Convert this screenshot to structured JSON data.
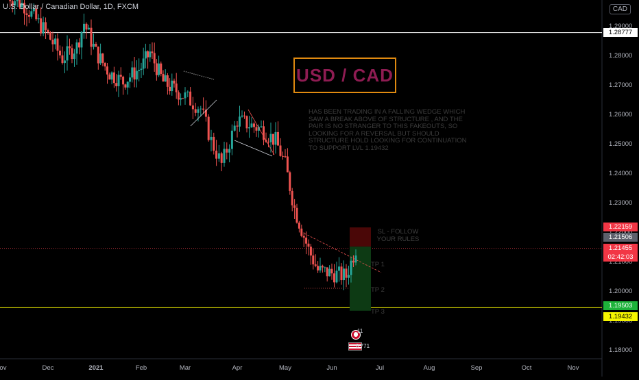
{
  "header": {
    "symbol": "U.S. Dollar / Canadian Dollar, 1D, FXCM",
    "currency_badge": "CAD"
  },
  "annotation": {
    "title": "USD / CAD",
    "note": "HAS BEEN TRADING IN A FALLING WEDGE WHICH SAW A BREAK ABOVE OF STRUCTURE , AND THE PAIR IS NO STRANGER TO THIS FAKEOUTS, SO LOOKING FOR A REVERSAL BUT SHOULD STRUCTURE HOLD LOOKING FOR CONTINUATION TO SUPPORT LVL 1.19432",
    "sl_label": "SL - FOLLOW YOUR RULES",
    "tp1": "TP 1",
    "tp2": "TP 2",
    "tp3": "TP 3"
  },
  "price_tags": {
    "resistance": "1.28777",
    "stop": "1.22159",
    "entry": "1.21506",
    "last": "1.21455",
    "countdown": "02:42:03",
    "target_green": "1.19503",
    "support": "1.19432"
  },
  "badges": {
    "ideas": "11",
    "followers": "8 771"
  },
  "colors": {
    "background": "#000000",
    "up": "#26a69a",
    "down": "#ef5350",
    "resistance_line": "#ffffff",
    "support_line": "#f5f500",
    "title_border": "#e08a10",
    "title_text": "#8e1c52",
    "stop_zone": "#4a0707",
    "target_zone": "#0d3a14"
  },
  "chart_data": {
    "type": "candlestick",
    "title": "U.S. Dollar / Canadian Dollar, 1D, FXCM",
    "x_ticks": [
      "Nov",
      "Dec",
      "2021",
      "Feb",
      "Mar",
      "Apr",
      "May",
      "Jun",
      "Jul",
      "Aug",
      "Sep",
      "Oct",
      "Nov"
    ],
    "y_ticks": [
      "1.29000",
      "1.28000",
      "1.27000",
      "1.26000",
      "1.25000",
      "1.24000",
      "1.23000",
      "1.22000",
      "1.21000",
      "1.20000",
      "1.19000",
      "1.18000"
    ],
    "ylim": [
      1.175,
      1.2985
    ],
    "close_path": [
      {
        "month": 0.0,
        "close": 1.302
      },
      {
        "month": 0.5,
        "close": 1.297
      },
      {
        "month": 1.0,
        "close": 1.287
      },
      {
        "month": 1.3,
        "close": 1.279
      },
      {
        "month": 1.6,
        "close": 1.283
      },
      {
        "month": 1.75,
        "close": 1.291
      },
      {
        "month": 2.0,
        "close": 1.281
      },
      {
        "month": 2.3,
        "close": 1.274
      },
      {
        "month": 2.6,
        "close": 1.271
      },
      {
        "month": 3.0,
        "close": 1.276
      },
      {
        "month": 3.2,
        "close": 1.281
      },
      {
        "month": 3.5,
        "close": 1.271
      },
      {
        "month": 4.0,
        "close": 1.266
      },
      {
        "month": 4.3,
        "close": 1.262
      },
      {
        "month": 4.5,
        "close": 1.251
      },
      {
        "month": 4.7,
        "close": 1.243
      },
      {
        "month": 5.0,
        "close": 1.258
      },
      {
        "month": 5.5,
        "close": 1.255
      },
      {
        "month": 5.8,
        "close": 1.251
      },
      {
        "month": 6.0,
        "close": 1.243
      },
      {
        "month": 6.2,
        "close": 1.228
      },
      {
        "month": 6.5,
        "close": 1.214
      },
      {
        "month": 6.7,
        "close": 1.207
      },
      {
        "month": 7.0,
        "close": 1.206
      },
      {
        "month": 7.3,
        "close": 1.205
      },
      {
        "month": 7.5,
        "close": 1.2145
      }
    ],
    "levels": [
      {
        "name": "resistance",
        "value": 1.28777
      },
      {
        "name": "support",
        "value": 1.19432
      }
    ],
    "trade_setup": {
      "entry": 1.21506,
      "stop": 1.22159,
      "target": 1.19503
    },
    "grid": false
  }
}
